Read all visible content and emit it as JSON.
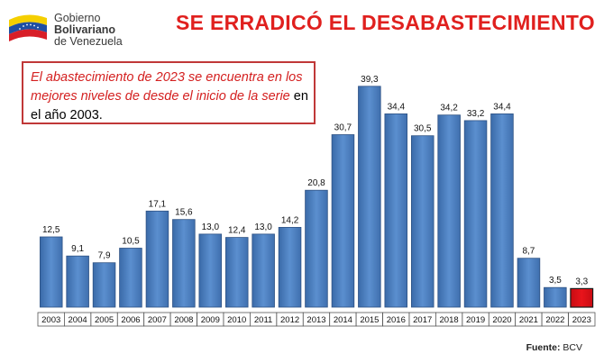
{
  "header": {
    "org_line1": "Gobierno",
    "org_line2": "Bolivariano",
    "org_line3": "de Venezuela",
    "title": "SE ERRADICÓ EL DESABASTECIMIENTO"
  },
  "callout": {
    "emphasis": "El abastecimiento de 2023 se encuentra en los mejores niveles de desde el inicio de la serie",
    "rest": " en el año 2003."
  },
  "source": {
    "label": "Fuente:",
    "value": "BCV"
  },
  "colors": {
    "bar": "#4f81bd",
    "bar_highlight": "#e8141b",
    "title": "#e0201e"
  },
  "chart_data": {
    "type": "bar",
    "title": "",
    "xlabel": "",
    "ylabel": "",
    "categories": [
      "2003",
      "2004",
      "2005",
      "2006",
      "2007",
      "2008",
      "2009",
      "2010",
      "2011",
      "2012",
      "2013",
      "2014",
      "2015",
      "2016",
      "2017",
      "2018",
      "2019",
      "2020",
      "2021",
      "2022",
      "2023"
    ],
    "values": [
      12.5,
      9.1,
      7.9,
      10.5,
      17.1,
      15.6,
      13.0,
      12.4,
      13.0,
      14.2,
      20.8,
      30.7,
      39.3,
      34.4,
      30.5,
      34.2,
      33.2,
      34.4,
      8.7,
      3.5,
      3.3
    ],
    "value_labels": [
      "12,5",
      "9,1",
      "7,9",
      "10,5",
      "17,1",
      "15,6",
      "13,0",
      "12,4",
      "13,0",
      "14,2",
      "20,8",
      "30,7",
      "39,3",
      "34,4",
      "30,5",
      "34,2",
      "33,2",
      "34,4",
      "8,7",
      "3,5",
      "3,3"
    ],
    "highlight_category": "2023",
    "ylim": [
      0,
      42
    ],
    "grid": false,
    "legend": "none"
  }
}
